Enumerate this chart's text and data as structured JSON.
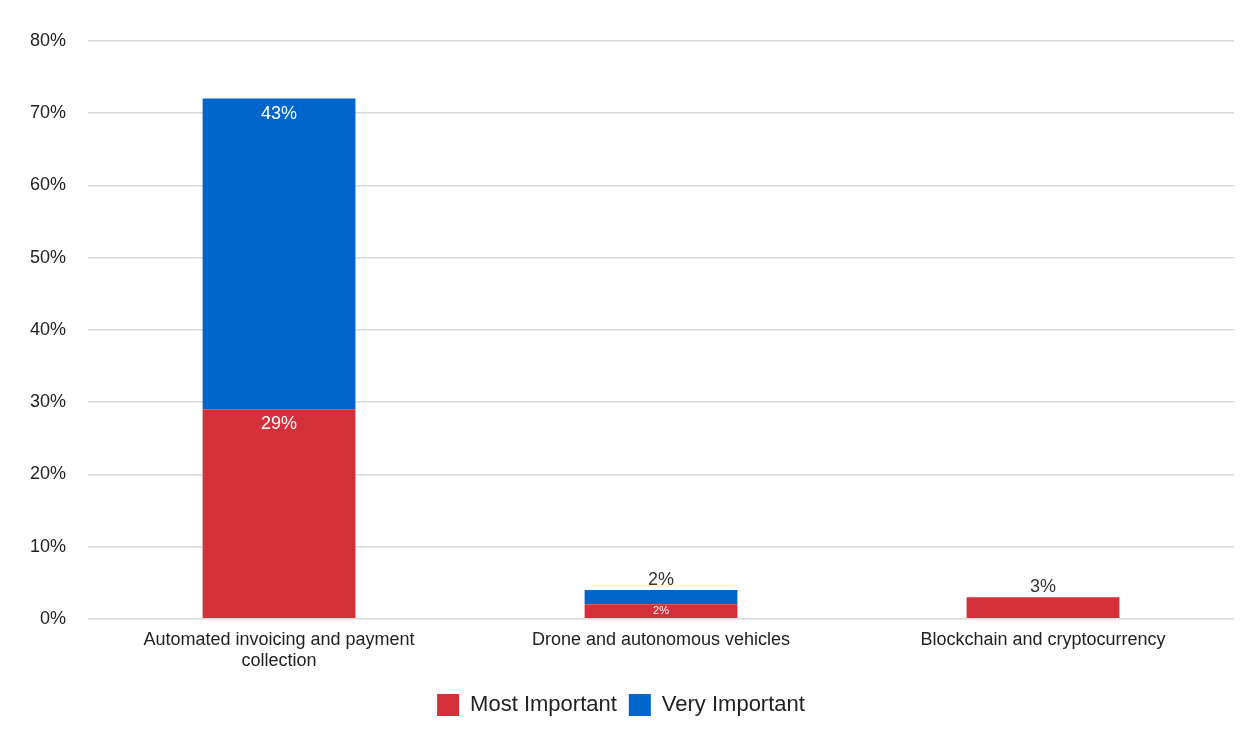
{
  "chart_data": {
    "type": "bar",
    "stacked": true,
    "categories": [
      "Automated invoicing and payment collection",
      "Drone and autonomous vehicles",
      "Blockchain and cryptocurrency"
    ],
    "series": [
      {
        "name": "Most Important",
        "color": "#d3303a",
        "values": [
          29,
          2,
          3
        ],
        "value_labels": [
          "29%",
          "2%",
          "3%"
        ]
      },
      {
        "name": "Very Important",
        "color": "#0066cc",
        "values": [
          43,
          2,
          null
        ],
        "value_labels": [
          "43%",
          "2%",
          null
        ]
      }
    ],
    "ylim": [
      0,
      80
    ],
    "yticks": [
      {
        "value": 0,
        "label": "0%"
      },
      {
        "value": 10,
        "label": "10%"
      },
      {
        "value": 20,
        "label": "20%"
      },
      {
        "value": 30,
        "label": "30%"
      },
      {
        "value": 40,
        "label": "40%"
      },
      {
        "value": 50,
        "label": "50%"
      },
      {
        "value": 60,
        "label": "60%"
      },
      {
        "value": 70,
        "label": "70%"
      },
      {
        "value": 80,
        "label": "80%"
      }
    ],
    "grid": "y",
    "legend": "bottom"
  }
}
